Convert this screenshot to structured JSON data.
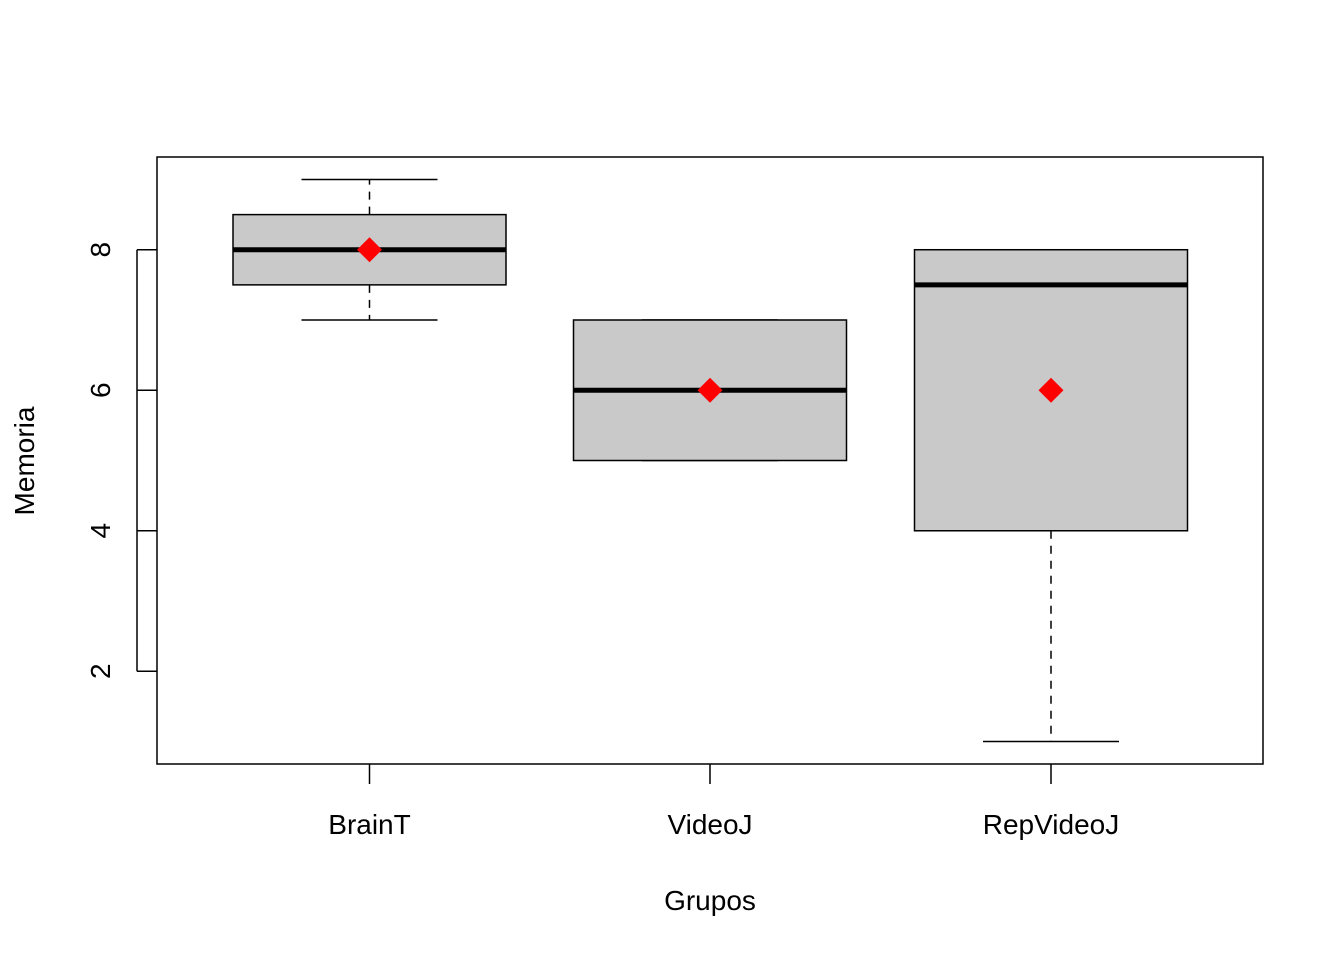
{
  "chart_data": {
    "type": "boxplot",
    "title": "",
    "xlabel": "Grupos",
    "ylabel": "Memoria",
    "ylim": [
      0.68,
      9.32
    ],
    "yticks": [
      2,
      4,
      6,
      8
    ],
    "grid": false,
    "colors": {
      "box_fill": "#c9c9c9",
      "mean_marker": "#ff0000",
      "line": "#000000"
    },
    "categories": [
      "BrainT",
      "VideoJ",
      "RepVideoJ"
    ],
    "boxes": [
      {
        "name": "BrainT",
        "min": 7,
        "q1": 7.5,
        "median": 8,
        "q3": 8.5,
        "max": 9,
        "mean": 8
      },
      {
        "name": "VideoJ",
        "min": 5,
        "q1": 5,
        "median": 6,
        "q3": 7,
        "max": 7,
        "mean": 6
      },
      {
        "name": "RepVideoJ",
        "min": 1,
        "q1": 4,
        "median": 7.5,
        "q3": 8,
        "max": 8,
        "mean": 6
      }
    ]
  }
}
